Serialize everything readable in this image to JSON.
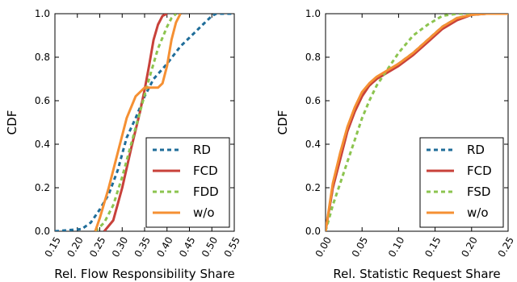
{
  "colors": {
    "RD": "#1f6d99",
    "FCD": "#c8413a",
    "FDD": "#8cc44f",
    "FSD": "#8cc44f",
    "w/o": "#f59033"
  },
  "chart_data": [
    {
      "type": "line",
      "xlabel": "Rel. Flow Responsibility Share",
      "ylabel": "CDF",
      "xlim": [
        0.15,
        0.55
      ],
      "ylim": [
        0.0,
        1.0
      ],
      "xticks": [
        "0.15",
        "0.20",
        "0.25",
        "0.30",
        "0.35",
        "0.40",
        "0.45",
        "0.50",
        "0.55"
      ],
      "yticks": [
        "0.0",
        "0.2",
        "0.4",
        "0.6",
        "0.8",
        "1.0"
      ],
      "legend": "lower-right",
      "series": [
        {
          "name": "RD",
          "style": "dashed",
          "x": [
            0.15,
            0.21,
            0.23,
            0.25,
            0.27,
            0.29,
            0.31,
            0.33,
            0.35,
            0.37,
            0.4,
            0.43,
            0.46,
            0.48,
            0.5,
            0.51,
            0.55
          ],
          "y": [
            0.0,
            0.01,
            0.04,
            0.1,
            0.17,
            0.28,
            0.43,
            0.52,
            0.62,
            0.7,
            0.77,
            0.85,
            0.91,
            0.95,
            0.99,
            1.0,
            1.0
          ]
        },
        {
          "name": "FCD",
          "style": "solid",
          "x": [
            0.26,
            0.28,
            0.3,
            0.32,
            0.34,
            0.35,
            0.36,
            0.37,
            0.38,
            0.39,
            0.4
          ],
          "y": [
            0.0,
            0.05,
            0.2,
            0.38,
            0.55,
            0.65,
            0.76,
            0.88,
            0.95,
            0.99,
            1.0
          ]
        },
        {
          "name": "FDD",
          "style": "dashed",
          "x": [
            0.24,
            0.26,
            0.28,
            0.3,
            0.32,
            0.34,
            0.36,
            0.38,
            0.4,
            0.41,
            0.42
          ],
          "y": [
            0.0,
            0.04,
            0.12,
            0.25,
            0.4,
            0.55,
            0.7,
            0.84,
            0.94,
            0.98,
            1.0
          ]
        },
        {
          "name": "w/o",
          "style": "solid",
          "x": [
            0.24,
            0.25,
            0.27,
            0.29,
            0.31,
            0.33,
            0.35,
            0.37,
            0.38,
            0.39,
            0.4,
            0.41,
            0.42,
            0.43
          ],
          "y": [
            0.0,
            0.06,
            0.2,
            0.36,
            0.52,
            0.62,
            0.66,
            0.66,
            0.66,
            0.68,
            0.76,
            0.88,
            0.96,
            1.0
          ]
        }
      ]
    },
    {
      "type": "line",
      "xlabel": "Rel. Statistic Request Share",
      "ylabel": "CDF",
      "xlim": [
        0.0,
        0.25
      ],
      "ylim": [
        0.0,
        1.0
      ],
      "xticks": [
        "0.00",
        "0.05",
        "0.10",
        "0.15",
        "0.20",
        "0.25"
      ],
      "yticks": [
        "0.0",
        "0.2",
        "0.4",
        "0.6",
        "0.8",
        "1.0"
      ],
      "legend": "lower-right",
      "series": [
        {
          "name": "RD",
          "style": "dashed",
          "x": [
            0.0,
            0.005,
            0.01,
            0.02,
            0.03,
            0.04,
            0.05,
            0.06,
            0.07,
            0.08,
            0.1,
            0.12,
            0.14,
            0.16,
            0.18,
            0.2,
            0.22,
            0.25
          ],
          "y": [
            0.0,
            0.1,
            0.2,
            0.34,
            0.47,
            0.56,
            0.63,
            0.67,
            0.7,
            0.72,
            0.77,
            0.82,
            0.88,
            0.94,
            0.98,
            0.995,
            1.0,
            1.0
          ]
        },
        {
          "name": "FCD",
          "style": "solid",
          "x": [
            0.0,
            0.005,
            0.01,
            0.02,
            0.03,
            0.04,
            0.05,
            0.06,
            0.07,
            0.08,
            0.1,
            0.12,
            0.14,
            0.16,
            0.18,
            0.2,
            0.22,
            0.25
          ],
          "y": [
            0.0,
            0.1,
            0.2,
            0.33,
            0.46,
            0.55,
            0.62,
            0.67,
            0.7,
            0.72,
            0.76,
            0.81,
            0.87,
            0.93,
            0.97,
            0.995,
            1.0,
            1.0
          ]
        },
        {
          "name": "FSD",
          "style": "dashed",
          "x": [
            0.0,
            0.005,
            0.01,
            0.02,
            0.03,
            0.04,
            0.05,
            0.06,
            0.07,
            0.08,
            0.1,
            0.12,
            0.14,
            0.15,
            0.16,
            0.18,
            0.2,
            0.25
          ],
          "y": [
            0.0,
            0.06,
            0.12,
            0.22,
            0.32,
            0.42,
            0.52,
            0.6,
            0.67,
            0.72,
            0.82,
            0.9,
            0.95,
            0.97,
            0.99,
            1.0,
            1.0,
            1.0
          ]
        },
        {
          "name": "w/o",
          "style": "solid",
          "x": [
            0.0,
            0.005,
            0.01,
            0.02,
            0.03,
            0.04,
            0.05,
            0.06,
            0.07,
            0.08,
            0.1,
            0.12,
            0.14,
            0.16,
            0.18,
            0.2,
            0.22,
            0.25
          ],
          "y": [
            0.0,
            0.11,
            0.22,
            0.36,
            0.48,
            0.57,
            0.64,
            0.68,
            0.71,
            0.73,
            0.77,
            0.82,
            0.88,
            0.94,
            0.98,
            0.995,
            1.0,
            1.0
          ]
        }
      ]
    }
  ]
}
